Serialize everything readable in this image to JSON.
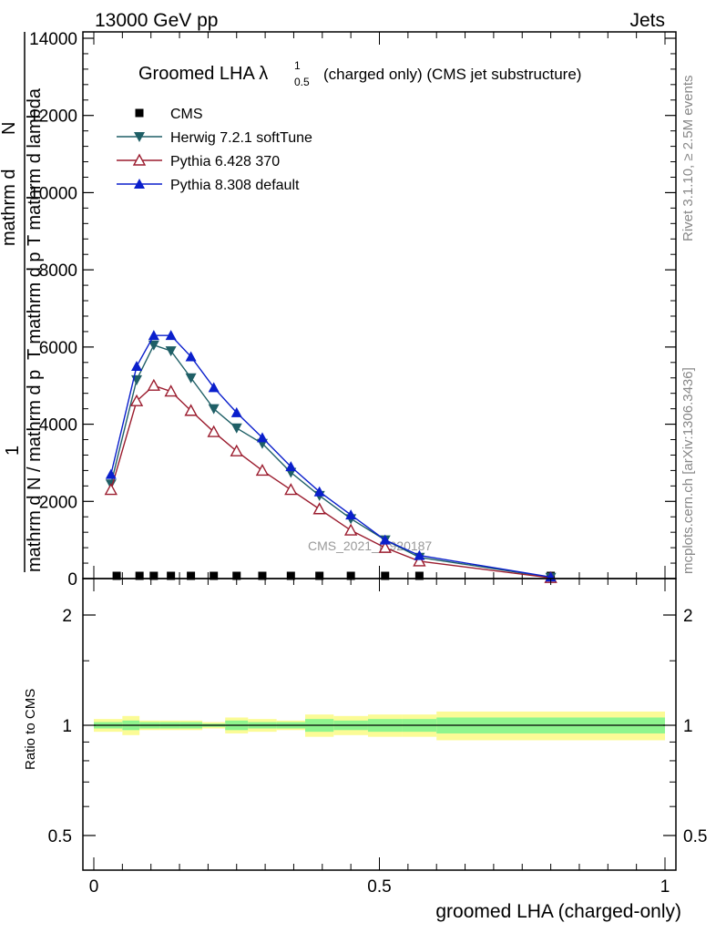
{
  "header": {
    "left": "13000 GeV pp",
    "right": "Jets"
  },
  "side_labels": {
    "top": "Rivet 3.1.10, ≥ 2.5M events",
    "bottom": "mcplots.cern.ch [arXiv:1306.3436]"
  },
  "watermark": "CMS_2021_I1920187",
  "chart_data": [
    {
      "type": "line",
      "title": "Groomed LHA λ",
      "title_sup": "1",
      "title_sub": "0.5",
      "title_suffix": "(charged only) (CMS jet substructure)",
      "ylabel_numerator": "1",
      "ylabel_den_lines": [
        "mathrm d N / mathrm d p",
        "T mathrm d p",
        "T mathrm d lambda"
      ],
      "ylabel_num_lines": [
        "mathrm d",
        "N"
      ],
      "ylim": [
        0,
        14000
      ],
      "yticks": [
        0,
        2000,
        4000,
        6000,
        8000,
        10000,
        12000,
        14000
      ],
      "ytick_labels": [
        "0",
        "2000",
        "4000",
        "6000",
        "8000",
        "10000",
        "12000",
        "14000"
      ],
      "xlim": [
        -0.02,
        1.02
      ],
      "legend_position": "top-left",
      "series": [
        {
          "name": "CMS",
          "color": "#000000",
          "marker": "square",
          "x": [
            0.04,
            0.08,
            0.105,
            0.135,
            0.17,
            0.21,
            0.25,
            0.295,
            0.345,
            0.395,
            0.45,
            0.51,
            0.57,
            0.8
          ],
          "y": [
            0,
            0,
            0,
            0,
            0,
            0,
            0,
            0,
            0,
            0,
            0,
            0,
            0,
            0
          ]
        },
        {
          "name": "Herwig 7.2.1 softTune",
          "color": "#1f5f66",
          "marker": "triangle-down",
          "x": [
            0.03,
            0.075,
            0.105,
            0.135,
            0.17,
            0.21,
            0.25,
            0.295,
            0.345,
            0.395,
            0.45,
            0.51,
            0.57,
            0.8
          ],
          "y": [
            2450,
            5150,
            6050,
            5900,
            5200,
            4400,
            3900,
            3500,
            2750,
            2150,
            1550,
            1000,
            550,
            30
          ]
        },
        {
          "name": "Pythia 6.428 370",
          "color": "#9b1c2e",
          "marker": "triangle-open",
          "x": [
            0.03,
            0.075,
            0.105,
            0.135,
            0.17,
            0.21,
            0.25,
            0.295,
            0.345,
            0.395,
            0.45,
            0.51,
            0.57,
            0.8
          ],
          "y": [
            2300,
            4600,
            5000,
            4850,
            4350,
            3800,
            3300,
            2800,
            2300,
            1800,
            1250,
            800,
            450,
            20
          ]
        },
        {
          "name": "Pythia 8.308 default",
          "color": "#0a1fcc",
          "marker": "triangle-up",
          "x": [
            0.03,
            0.075,
            0.105,
            0.135,
            0.17,
            0.21,
            0.25,
            0.295,
            0.345,
            0.395,
            0.45,
            0.51,
            0.57,
            0.8
          ],
          "y": [
            2700,
            5500,
            6300,
            6300,
            5750,
            4950,
            4300,
            3650,
            2900,
            2250,
            1650,
            1000,
            600,
            40
          ]
        }
      ]
    },
    {
      "type": "area",
      "ylabel": "Ratio to CMS",
      "xlabel": "groomed LHA (charged-only)",
      "xlim": [
        -0.02,
        1.02
      ],
      "xticks": [
        0,
        0.5,
        1
      ],
      "xtick_labels": [
        "0",
        "0.5",
        "1"
      ],
      "ylim": [
        0.4,
        2.4
      ],
      "yticks": [
        0.5,
        1,
        2
      ],
      "ytick_labels": [
        "0.5",
        "1",
        "2"
      ],
      "reference_line": 1,
      "bands": {
        "colors": {
          "inner": "#8ef58e",
          "outer": "#fbfb96"
        },
        "bin_edges": [
          0,
          0.05,
          0.08,
          0.115,
          0.15,
          0.19,
          0.23,
          0.27,
          0.32,
          0.37,
          0.42,
          0.48,
          0.54,
          0.6,
          1.0
        ],
        "inner": [
          0.02,
          0.03,
          0.02,
          0.02,
          0.02,
          0.01,
          0.03,
          0.02,
          0.02,
          0.04,
          0.03,
          0.04,
          0.04,
          0.05
        ],
        "outer": [
          0.04,
          0.06,
          0.03,
          0.03,
          0.03,
          0.02,
          0.05,
          0.04,
          0.03,
          0.07,
          0.06,
          0.07,
          0.07,
          0.09
        ]
      }
    }
  ]
}
